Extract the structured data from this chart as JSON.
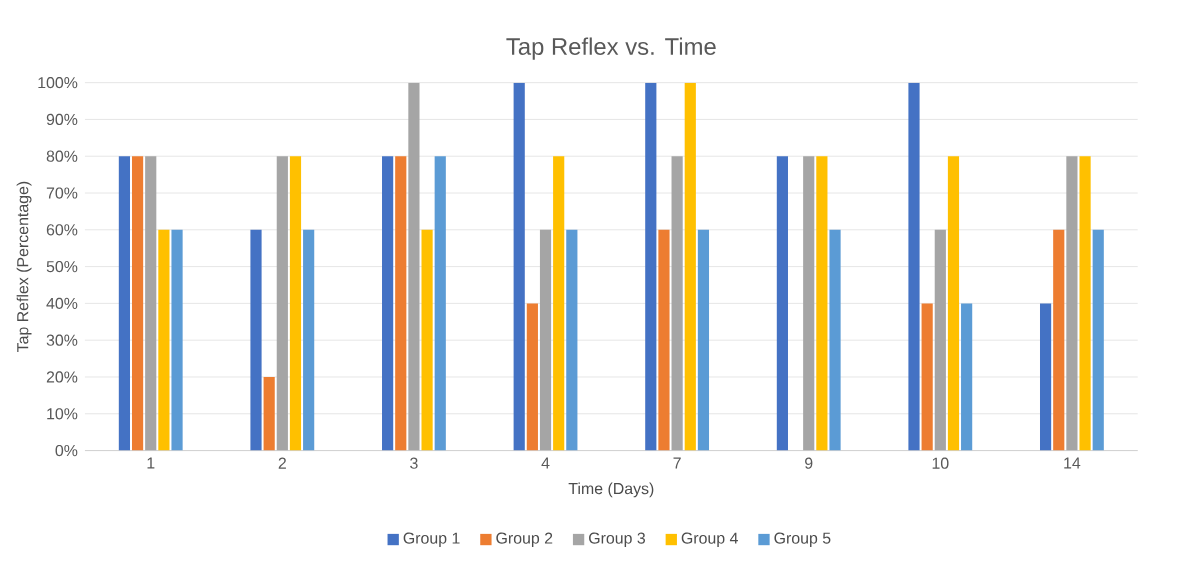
{
  "chart_data": {
    "type": "bar",
    "title": "Tap Reflex vs. Time",
    "xlabel": "Time (Days)",
    "ylabel": "Tap Reflex (Percentage)",
    "categories": [
      "1",
      "2",
      "3",
      "4",
      "7",
      "9",
      "10",
      "14"
    ],
    "series": [
      {
        "name": "Group 1",
        "color": "#4472c4",
        "values": [
          80,
          60,
          80,
          100,
          100,
          80,
          100,
          40
        ]
      },
      {
        "name": "Group 2",
        "color": "#ed7d31",
        "values": [
          80,
          20,
          80,
          40,
          60,
          0,
          40,
          60
        ]
      },
      {
        "name": "Group 3",
        "color": "#a5a5a5",
        "values": [
          80,
          80,
          100,
          60,
          80,
          80,
          60,
          80
        ]
      },
      {
        "name": "Group 4",
        "color": "#ffc000",
        "values": [
          60,
          80,
          60,
          80,
          100,
          80,
          80,
          80
        ]
      },
      {
        "name": "Group 5",
        "color": "#5b9bd5",
        "values": [
          60,
          60,
          80,
          60,
          60,
          60,
          40,
          60
        ]
      }
    ],
    "ylim": [
      0,
      100
    ],
    "yticks": [
      {
        "value": 0,
        "label": "0%"
      },
      {
        "value": 10,
        "label": "10%"
      },
      {
        "value": 20,
        "label": "20%"
      },
      {
        "value": 30,
        "label": "30%"
      },
      {
        "value": 40,
        "label": "40%"
      },
      {
        "value": 50,
        "label": "50%"
      },
      {
        "value": 60,
        "label": "60%"
      },
      {
        "value": 70,
        "label": "70%"
      },
      {
        "value": 80,
        "label": "80%"
      },
      {
        "value": 90,
        "label": "90%"
      },
      {
        "value": 100,
        "label": "100%"
      }
    ],
    "grid": "y",
    "legend": "bottom"
  }
}
